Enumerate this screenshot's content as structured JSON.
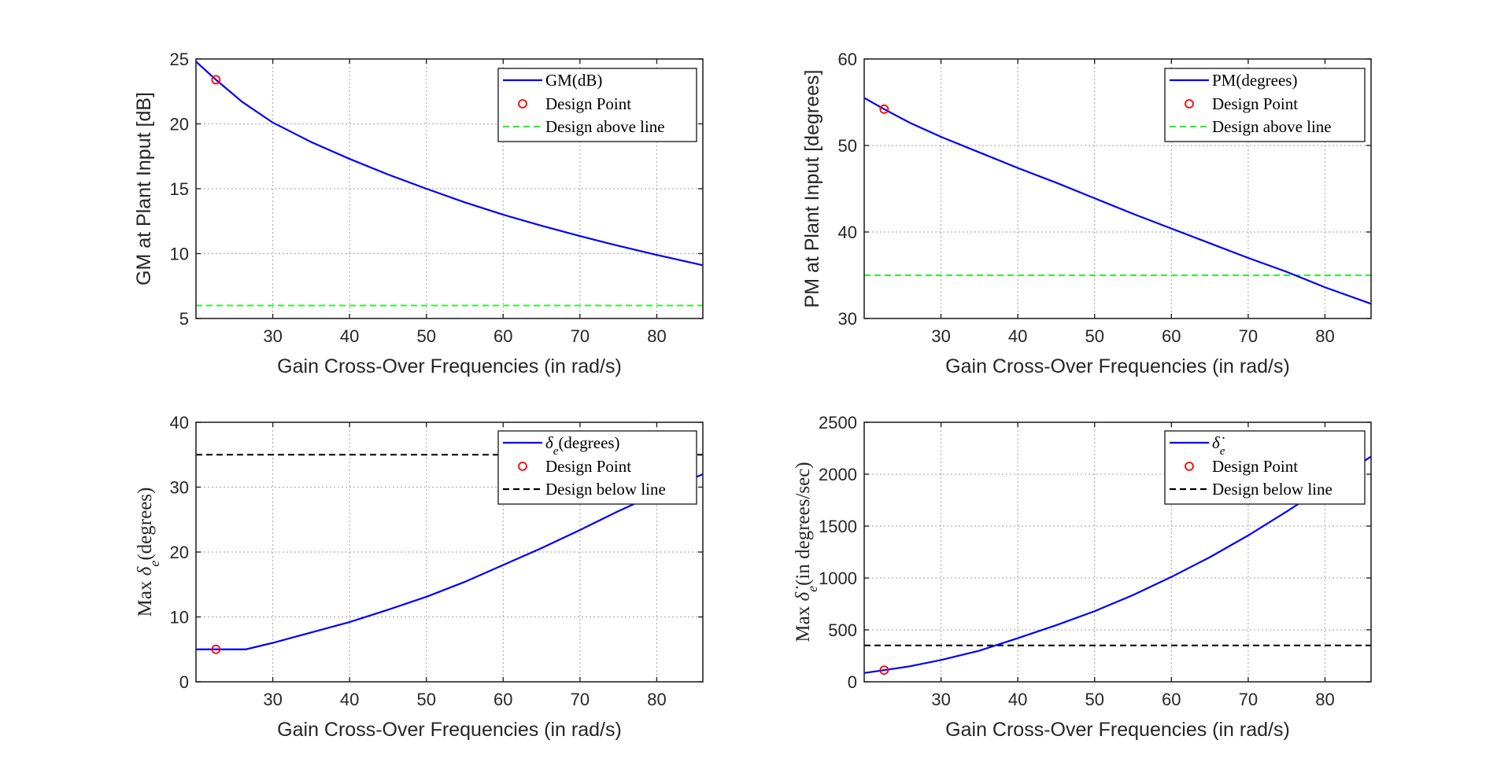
{
  "chart_data": [
    {
      "type": "line",
      "xlabel": "Gain Cross-Over Frequencies (in rad/s)",
      "ylabel": "GM at Plant Input [dB]",
      "xlim": [
        20,
        86
      ],
      "ylim": [
        5,
        25
      ],
      "xticks": [
        30,
        40,
        50,
        60,
        70,
        80
      ],
      "yticks": [
        5,
        10,
        15,
        20,
        25
      ],
      "legend": {
        "position": "top-right",
        "entries": [
          "GM(dB)",
          "Design Point",
          "Design above line"
        ]
      },
      "series": [
        {
          "name": "GM(dB)",
          "color": "#0000ff",
          "x": [
            20,
            22.6,
            26,
            30,
            35,
            40,
            45,
            50,
            55,
            60,
            65,
            70,
            75,
            80,
            86
          ],
          "y": [
            24.8,
            23.4,
            21.7,
            20.1,
            18.6,
            17.3,
            16.1,
            15.0,
            13.95,
            13.0,
            12.15,
            11.35,
            10.6,
            9.9,
            9.1
          ]
        }
      ],
      "design_point": {
        "name": "Design Point",
        "x": 22.6,
        "y": 23.4,
        "color": "#ff0000"
      },
      "reference_line": {
        "name": "Design above line",
        "y": 6,
        "color": "#33ee33",
        "style": "dashed"
      }
    },
    {
      "type": "line",
      "xlabel": "Gain Cross-Over Frequencies (in rad/s)",
      "ylabel": "PM at Plant Input [degrees]",
      "xlim": [
        20,
        86
      ],
      "ylim": [
        30,
        60
      ],
      "xticks": [
        30,
        40,
        50,
        60,
        70,
        80
      ],
      "yticks": [
        30,
        40,
        50,
        60
      ],
      "legend": {
        "position": "top-right",
        "entries": [
          "PM(degrees)",
          "Design Point",
          "Design above line"
        ]
      },
      "series": [
        {
          "name": "PM(degrees)",
          "color": "#0000ff",
          "x": [
            20,
            22.6,
            26,
            30,
            35,
            40,
            45,
            50,
            55,
            60,
            65,
            70,
            75,
            80,
            86
          ],
          "y": [
            55.5,
            54.2,
            52.6,
            51.0,
            49.2,
            47.4,
            45.7,
            43.9,
            42.1,
            40.4,
            38.7,
            37.0,
            35.4,
            33.6,
            31.7
          ]
        }
      ],
      "design_point": {
        "name": "Design Point",
        "x": 22.6,
        "y": 54.2,
        "color": "#ff0000"
      },
      "reference_line": {
        "name": "Design above line",
        "y": 35,
        "color": "#33ee33",
        "style": "dashed"
      }
    },
    {
      "type": "line",
      "xlabel": "Gain Cross-Over Frequencies (in rad/s)",
      "ylabel": "Max δe(degrees)",
      "xlim": [
        20,
        86
      ],
      "ylim": [
        0,
        40
      ],
      "xticks": [
        30,
        40,
        50,
        60,
        70,
        80
      ],
      "yticks": [
        0,
        10,
        20,
        30,
        40
      ],
      "legend": {
        "position": "top-right",
        "entries": [
          "δe(degrees)",
          "Design Point",
          "Design below line"
        ]
      },
      "series": [
        {
          "name": "δe(degrees)",
          "color": "#0000ff",
          "x": [
            20,
            22.6,
            26.5,
            30,
            35,
            40,
            45,
            50,
            55,
            60,
            65,
            70,
            75,
            80,
            86
          ],
          "y": [
            5.0,
            5.0,
            5.0,
            6.0,
            7.6,
            9.2,
            11.1,
            13.1,
            15.4,
            18.0,
            20.6,
            23.4,
            26.3,
            29.0,
            32.0
          ]
        }
      ],
      "design_point": {
        "name": "Design Point",
        "x": 22.6,
        "y": 5.0,
        "color": "#ff0000"
      },
      "reference_line": {
        "name": "Design below line",
        "y": 35,
        "color": "#000000",
        "style": "dashed"
      }
    },
    {
      "type": "line",
      "xlabel": "Gain Cross-Over Frequencies (in rad/s)",
      "ylabel": "Max δ̇e(in degrees/sec)",
      "xlim": [
        20,
        86
      ],
      "ylim": [
        0,
        2500
      ],
      "xticks": [
        30,
        40,
        50,
        60,
        70,
        80
      ],
      "yticks": [
        0,
        500,
        1000,
        1500,
        2000,
        2500
      ],
      "legend": {
        "position": "top-right",
        "entries": [
          "δ̇e",
          "Design Point",
          "Design below line"
        ]
      },
      "series": [
        {
          "name": "δ̇e",
          "color": "#0000ff",
          "x": [
            20,
            22.6,
            26,
            30,
            35,
            40,
            45,
            50,
            55,
            60,
            65,
            70,
            75,
            80,
            86
          ],
          "y": [
            85,
            112,
            150,
            210,
            300,
            420,
            545,
            680,
            835,
            1010,
            1200,
            1410,
            1640,
            1880,
            2170
          ]
        }
      ],
      "design_point": {
        "name": "Design Point",
        "x": 22.6,
        "y": 112,
        "color": "#ff0000"
      },
      "reference_line": {
        "name": "Design below line",
        "y": 350,
        "color": "#000000",
        "style": "dashed"
      }
    }
  ]
}
